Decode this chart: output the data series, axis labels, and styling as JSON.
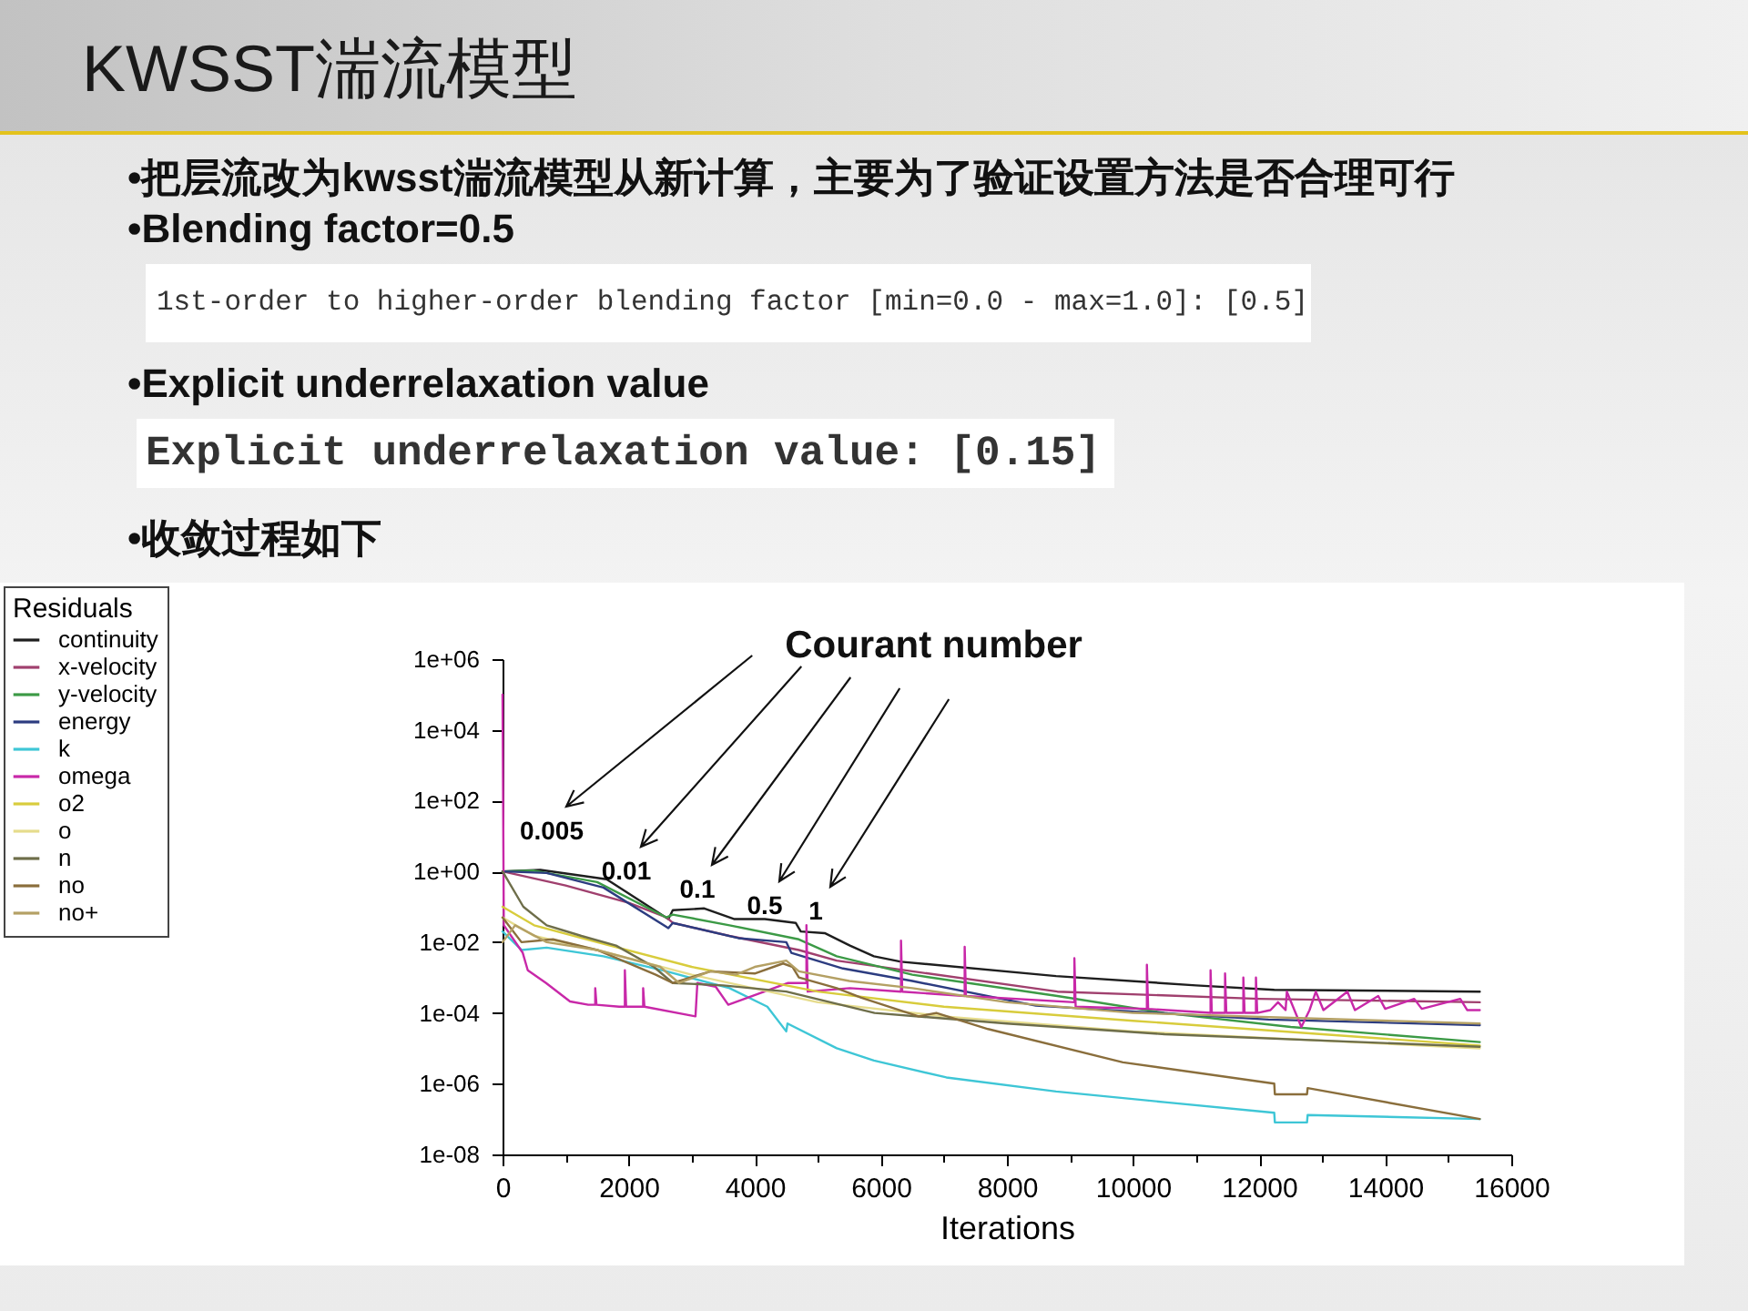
{
  "chart_data": {
    "type": "line",
    "title": "KWSST湍流模型",
    "annotations": [
      "•把层流改为kwsst湍流模型从新计算，主要为了验证设置方法是否合理可行",
      "•Blending factor=0.5",
      "1st-order to higher-order blending factor [min=0.0 - max=1.0]: [0.5]",
      "•Explicit underrelaxation value",
      "Explicit underrelaxation value: [0.15]",
      "•收敛过程如下",
      "Courant number",
      "0.005",
      "0.01",
      "0.1",
      "0.5",
      "1"
    ],
    "xlabel": "Iterations",
    "legend_title": "Residuals",
    "legend": "top left",
    "log": "y",
    "xlim": [
      0,
      16000
    ],
    "xticks": [
      0,
      {
        "value": 1000,
        "label": null
      },
      2000,
      {
        "value": 3000,
        "label": null
      },
      4000,
      {
        "value": 5000,
        "label": null
      },
      6000,
      {
        "value": 7000,
        "label": null
      },
      8000,
      {
        "value": 9000,
        "label": null
      },
      10000,
      {
        "value": 11000,
        "label": null
      },
      12000,
      {
        "value": 13000,
        "label": null
      },
      14000,
      {
        "value": 15000,
        "label": null
      },
      16000
    ],
    "ylim": [
      1e-08,
      1000000
    ],
    "yticks": [
      {
        "value": 1e-08,
        "label": "1e-08"
      },
      {
        "value": 1e-06,
        "label": "1e-06"
      },
      {
        "value": 0.0001,
        "label": "1e-04"
      },
      {
        "value": 0.01,
        "label": "1e-02"
      },
      {
        "value": 1,
        "label": "1e+00"
      },
      {
        "value": 100,
        "label": "1e+02"
      },
      {
        "value": 10000,
        "label": "1e+04"
      },
      {
        "value": 1000000,
        "label": "1e+06"
      }
    ],
    "series": [
      {
        "name": "continuity",
        "color": "#1e1e1e",
        "x": [
          0,
          600,
          1650,
          2630,
          2700,
          3200,
          3670,
          4160,
          4650,
          4730,
          5110,
          5510,
          5890,
          6320,
          8780,
          11000,
          12240,
          15500
        ],
        "values": [
          1,
          1.1,
          0.6,
          0.045,
          0.08,
          0.09,
          0.045,
          0.045,
          0.035,
          0.02,
          0.018,
          0.008,
          0.004,
          0.0028,
          0.0011,
          0.0006,
          0.00045,
          0.0004
        ]
      },
      {
        "name": "x-velocity",
        "color": "#a0406e",
        "x": [
          0,
          1000,
          2000,
          2600,
          2700,
          3600,
          4700,
          5300,
          6500,
          8800,
          12000,
          15500
        ],
        "values": [
          1,
          0.4,
          0.13,
          0.05,
          0.035,
          0.015,
          0.006,
          0.003,
          0.0015,
          0.0004,
          0.00025,
          0.0002
        ]
      },
      {
        "name": "y-velocity",
        "color": "#3c9a46",
        "x": [
          0,
          500,
          1500,
          2600,
          2700,
          3600,
          4700,
          5300,
          6500,
          8800,
          10500,
          12500,
          15500
        ],
        "values": [
          1,
          1.05,
          0.5,
          0.05,
          0.06,
          0.03,
          0.012,
          0.004,
          0.0012,
          0.0003,
          0.0001,
          4e-05,
          1.5e-05
        ]
      },
      {
        "name": "energy",
        "color": "#2c3c80",
        "x": [
          0,
          700,
          1600,
          2630,
          2700,
          3740,
          4500,
          4580,
          5400,
          6500,
          8460,
          12150,
          15500
        ],
        "values": [
          1,
          0.9,
          0.35,
          0.025,
          0.035,
          0.013,
          0.01,
          0.005,
          0.0018,
          0.0008,
          0.00016,
          6.5e-05,
          4.5e-05
        ]
      },
      {
        "name": "k",
        "color": "#3ec6d6",
        "x": [
          0,
          300,
          700,
          1600,
          2600,
          3600,
          4200,
          4500,
          4520,
          5300,
          5890,
          7040,
          8780,
          10500,
          12240,
          12250,
          12760,
          12770,
          15500
        ],
        "values": [
          0.02,
          0.006,
          0.007,
          0.004,
          0.0015,
          0.0005,
          0.00015,
          3e-05,
          5e-05,
          1e-05,
          4.5e-06,
          1.5e-06,
          6e-07,
          3e-07,
          1.5e-07,
          8e-08,
          8e-08,
          1.3e-07,
          1e-07
        ]
      },
      {
        "name": "omega",
        "color": "#c828a8",
        "x": [
          0,
          20,
          320,
          400,
          690,
          1070,
          1360,
          1470,
          1470,
          1490,
          1850,
          1940,
          1940,
          1960,
          2230,
          2230,
          2250,
          3060,
          3090,
          3380,
          3580,
          4530,
          4820,
          4820,
          4840,
          5510,
          6320,
          6320,
          6340,
          7330,
          7330,
          7350,
          9070,
          9070,
          9090,
          10220,
          10220,
          10240,
          11230,
          11230,
          11250,
          11460,
          11460,
          11480,
          11750,
          11750,
          11770,
          11950,
          11950,
          11970,
          12180,
          12300,
          12420,
          12440,
          12560,
          12670,
          12800,
          12900,
          13020,
          13400,
          13520,
          13890,
          14000,
          14460,
          14580,
          15190,
          15300,
          15500
        ],
        "values": [
          100000,
          0.03,
          0.005,
          0.0016,
          0.0007,
          0.00021,
          0.00017,
          0.00017,
          0.0005,
          0.00017,
          0.00015,
          0.00015,
          0.0016,
          0.00015,
          0.00015,
          0.0005,
          0.00015,
          8e-05,
          0.0007,
          0.00055,
          0.00017,
          0.0007,
          0.0007,
          0.03,
          0.0004,
          0.0005,
          0.0004,
          0.011,
          0.0004,
          0.0003,
          0.0074,
          0.0003,
          0.0002,
          0.0035,
          0.00015,
          0.00013,
          0.0023,
          0.00013,
          0.0001,
          0.0016,
          0.0001,
          0.0001,
          0.0013,
          0.0001,
          0.0001,
          0.001,
          0.0001,
          0.0001,
          0.001,
          0.0001,
          0.00012,
          0.0002,
          0.00012,
          0.0004,
          0.00012,
          4e-05,
          0.00012,
          0.0004,
          0.00012,
          0.0004,
          0.00012,
          0.0003,
          0.00013,
          0.00025,
          0.00013,
          0.00025,
          0.00012,
          0.00012
        ]
      },
      {
        "name": "o2",
        "color": "#d8cc3c",
        "x": [
          0,
          500,
          1500,
          3000,
          5000,
          7000,
          10000,
          15500
        ],
        "values": [
          0.1,
          0.03,
          0.01,
          0.002,
          0.0004,
          0.00015,
          6e-05,
          1.2e-05
        ]
      },
      {
        "name": "o",
        "color": "#e6dc8c",
        "x": [
          0,
          500,
          1500,
          3000,
          5000,
          7000,
          10000,
          15500
        ],
        "values": [
          0.05,
          0.015,
          0.006,
          0.0012,
          0.0002,
          8e-05,
          3e-05,
          1e-05
        ]
      },
      {
        "name": "n",
        "color": "#6e6e4a",
        "x": [
          0,
          330,
          700,
          1250,
          1800,
          2400,
          2700,
          3500,
          4500,
          5900,
          8000,
          10500,
          15500
        ],
        "values": [
          1,
          0.1,
          0.03,
          0.015,
          0.008,
          0.002,
          0.0007,
          0.0006,
          0.0004,
          0.0001,
          5e-05,
          2.5e-05,
          1.1e-05
        ]
      },
      {
        "name": "no",
        "color": "#8a6e3c",
        "x": [
          0,
          300,
          800,
          1500,
          2430,
          2700,
          3300,
          4000,
          4450,
          4600,
          4700,
          5300,
          5690,
          6600,
          6880,
          7700,
          9840,
          12240,
          12250,
          12760,
          12770,
          15500
        ],
        "values": [
          0.05,
          0.01,
          0.012,
          0.006,
          0.0012,
          0.0007,
          0.0015,
          0.0013,
          0.0025,
          0.002,
          0.001,
          0.0005,
          0.00027,
          8e-05,
          0.0001,
          3.5e-05,
          4e-06,
          1e-06,
          5e-07,
          5e-07,
          7.5e-07,
          1e-07
        ]
      },
      {
        "name": "no+",
        "color": "#b4a064",
        "x": [
          0,
          200,
          700,
          1500,
          2500,
          2800,
          3300,
          3700,
          4000,
          4500,
          4700,
          5500,
          6500,
          8000,
          10000,
          15500
        ],
        "values": [
          0.01,
          0.03,
          0.01,
          0.006,
          0.002,
          0.0007,
          0.0015,
          0.0012,
          0.002,
          0.003,
          0.0015,
          0.0008,
          0.0005,
          0.0002,
          0.0001,
          5e-05
        ]
      }
    ]
  }
}
